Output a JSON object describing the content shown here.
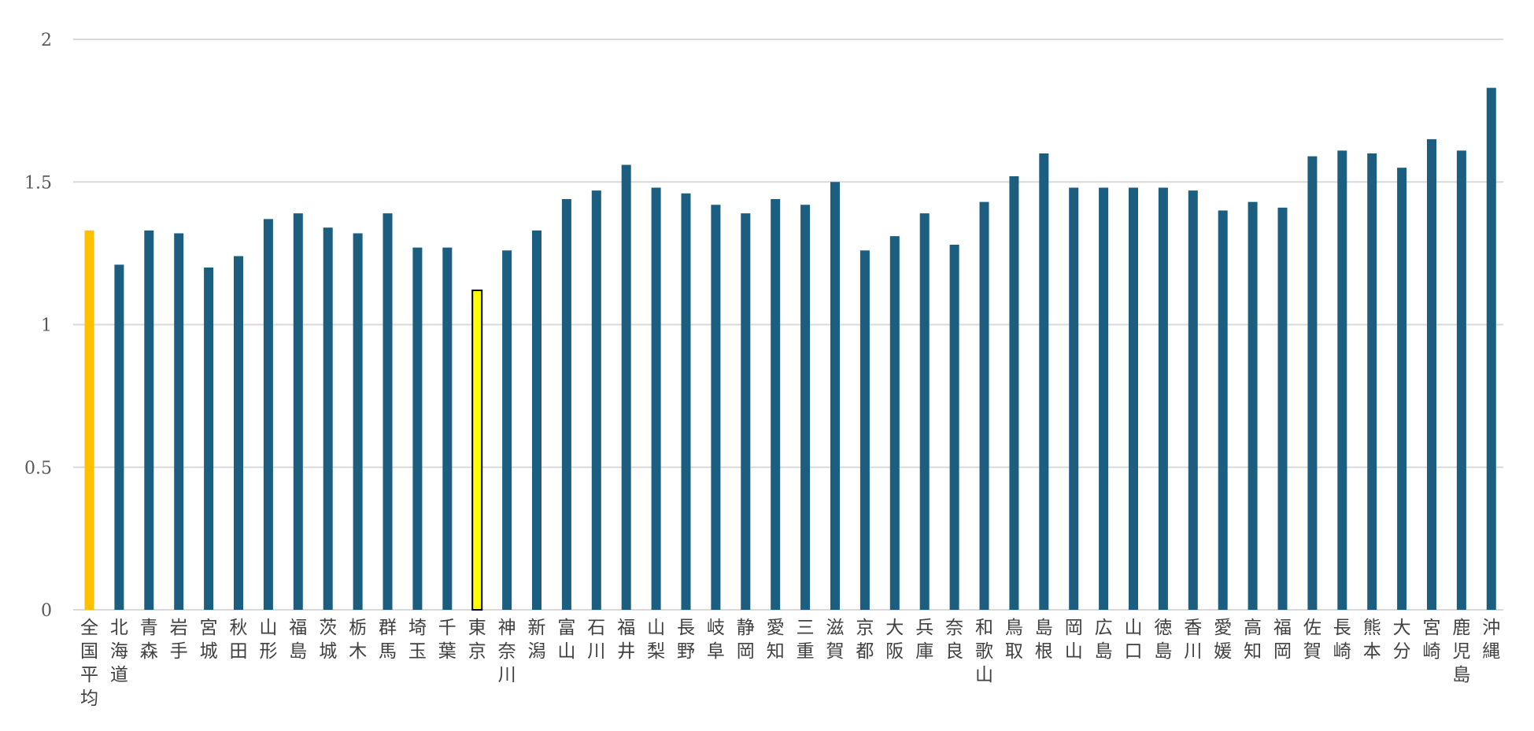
{
  "chart_data": {
    "type": "bar",
    "title": "",
    "xlabel": "",
    "ylabel": "",
    "ylim": [
      0,
      2
    ],
    "yticks": [
      "0",
      "0.5",
      "1",
      "1.5",
      "2"
    ],
    "grid": true,
    "legend": "none",
    "categories": [
      "全国平均",
      "北海道",
      "青森",
      "岩手",
      "宮城",
      "秋田",
      "山形",
      "福島",
      "茨城",
      "栃木",
      "群馬",
      "埼玉",
      "千葉",
      "東京",
      "神奈川",
      "新潟",
      "富山",
      "石川",
      "福井",
      "山梨",
      "長野",
      "岐阜",
      "静岡",
      "愛知",
      "三重",
      "滋賀",
      "京都",
      "大阪",
      "兵庫",
      "奈良",
      "和歌山",
      "鳥取",
      "島根",
      "岡山",
      "広島",
      "山口",
      "徳島",
      "香川",
      "愛媛",
      "高知",
      "福岡",
      "佐賀",
      "長崎",
      "熊本",
      "大分",
      "宮崎",
      "鹿児島",
      "沖縄"
    ],
    "values": [
      1.33,
      1.21,
      1.33,
      1.32,
      1.2,
      1.24,
      1.37,
      1.39,
      1.34,
      1.32,
      1.39,
      1.27,
      1.27,
      1.12,
      1.26,
      1.33,
      1.44,
      1.47,
      1.56,
      1.48,
      1.46,
      1.42,
      1.39,
      1.44,
      1.42,
      1.5,
      1.26,
      1.31,
      1.39,
      1.28,
      1.43,
      1.52,
      1.6,
      1.48,
      1.48,
      1.48,
      1.48,
      1.47,
      1.4,
      1.43,
      1.41,
      1.59,
      1.61,
      1.6,
      1.55,
      1.65,
      1.61,
      1.83
    ],
    "colors": {
      "default": "#1b5e80",
      "national_average": "#ffc000",
      "tokyo": "#ffff00",
      "tokyo_outline": "#000000",
      "grid": "#d9d9d9"
    },
    "highlight": {
      "national_average": "全国平均",
      "outlined": "東京"
    }
  }
}
